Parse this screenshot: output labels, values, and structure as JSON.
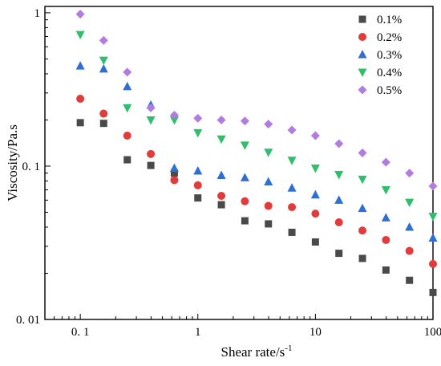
{
  "chart_data": {
    "type": "scatter",
    "title": "",
    "xlabel": "Shear rate/s",
    "xlabel_exponent": "-1",
    "ylabel": "Viscosity/Pa.s",
    "xscale": "log",
    "yscale": "log",
    "xlim": [
      0.05,
      100
    ],
    "ylim": [
      0.01,
      1.1
    ],
    "grid": false,
    "legend_position": "top-right",
    "x_ticks": [
      {
        "value": 0.1,
        "label": "0. 1"
      },
      {
        "value": 1,
        "label": "1"
      },
      {
        "value": 10,
        "label": "10"
      },
      {
        "value": 100,
        "label": "100"
      }
    ],
    "y_ticks": [
      {
        "value": 0.01,
        "label": "0. 01"
      },
      {
        "value": 0.1,
        "label": "0. 1"
      },
      {
        "value": 1,
        "label": "1"
      }
    ],
    "x": [
      0.1,
      0.158,
      0.251,
      0.398,
      0.631,
      1,
      1.585,
      2.512,
      3.981,
      6.31,
      10,
      15.85,
      25.12,
      39.81,
      63.1,
      100
    ],
    "series": [
      {
        "name": "0.1%",
        "marker": "square",
        "color": "#4a4a4a",
        "values": [
          0.192,
          0.19,
          0.11,
          0.101,
          0.09,
          0.062,
          0.056,
          0.044,
          0.042,
          0.037,
          0.032,
          0.027,
          0.025,
          0.021,
          0.018,
          0.015
        ]
      },
      {
        "name": "0.2%",
        "marker": "circle",
        "color": "#e03c3c",
        "values": [
          0.275,
          0.22,
          0.158,
          0.12,
          0.081,
          0.075,
          0.064,
          0.059,
          0.055,
          0.054,
          0.049,
          0.043,
          0.038,
          0.033,
          0.028,
          0.023
        ]
      },
      {
        "name": "0.3%",
        "marker": "triangle-up",
        "color": "#2f6fd1",
        "values": [
          0.45,
          0.43,
          0.33,
          0.25,
          0.097,
          0.093,
          0.087,
          0.084,
          0.079,
          0.072,
          0.065,
          0.06,
          0.053,
          0.046,
          0.04,
          0.034
        ]
      },
      {
        "name": "0.4%",
        "marker": "triangle-down",
        "color": "#2fbf6a",
        "values": [
          0.72,
          0.49,
          0.24,
          0.2,
          0.2,
          0.165,
          0.15,
          0.137,
          0.123,
          0.109,
          0.097,
          0.088,
          0.082,
          0.07,
          0.058,
          0.047
        ]
      },
      {
        "name": "0.5%",
        "marker": "diamond",
        "color": "#b27be0",
        "values": [
          0.98,
          0.66,
          0.41,
          0.24,
          0.215,
          0.205,
          0.2,
          0.197,
          0.188,
          0.172,
          0.158,
          0.14,
          0.122,
          0.106,
          0.09,
          0.074
        ]
      }
    ]
  }
}
